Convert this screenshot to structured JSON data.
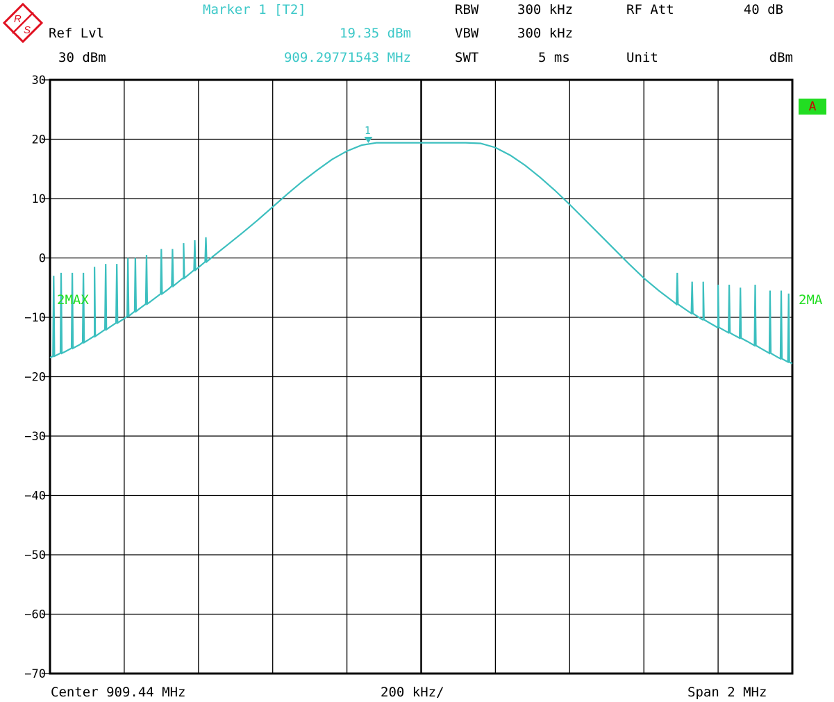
{
  "header": {
    "ref_lvl_label": "Ref Lvl",
    "ref_lvl_value": "30 dBm",
    "marker_title": "Marker 1 [T2]",
    "marker_level": "19.35 dBm",
    "marker_freq": "909.29771543 MHz",
    "rbw_label": "RBW",
    "rbw_value": "300 kHz",
    "vbw_label": "VBW",
    "vbw_value": "300 kHz",
    "swt_label": "SWT",
    "swt_value": "5 ms",
    "rfatt_label": "RF Att",
    "rfatt_value": "40 dB",
    "unit_label": "Unit",
    "unit_value": "dBm"
  },
  "footer": {
    "center": "Center 909.44 MHz",
    "per_div": "200 kHz/",
    "span": "Span 2 MHz"
  },
  "indicators": {
    "trace_badge": "A",
    "trace_left_label": "2MAX",
    "trace_right_label": "2MA",
    "marker_label": "1"
  },
  "colors": {
    "trace": "#3cbfbf",
    "grid": "#000000",
    "badge_bg": "#22dd22",
    "badge_text": "#cc0000",
    "label_green": "#22dd22",
    "logo_red": "#e01020"
  },
  "chart_data": {
    "type": "line",
    "xlabel": "Center 909.44 MHz",
    "x_unit": "MHz",
    "ylabel": "dBm",
    "xlim": [
      908.44,
      910.44
    ],
    "ylim": [
      -70,
      30
    ],
    "yticks": [
      "30",
      "20",
      "10",
      "0",
      "-10",
      "-20",
      "-30",
      "-40",
      "-50",
      "-60",
      "-70"
    ],
    "grid": true,
    "series": [
      {
        "x": [
          908.44,
          908.48,
          908.52,
          908.56,
          908.6,
          908.64,
          908.68,
          908.72,
          908.76,
          908.8,
          908.84,
          908.88,
          908.92,
          908.96,
          909.0,
          909.04,
          909.08,
          909.12,
          909.16,
          909.2,
          909.24,
          909.28,
          909.32,
          909.36,
          909.4,
          909.44,
          909.48,
          909.52,
          909.56,
          909.6,
          909.64,
          909.68,
          909.72,
          909.76,
          909.8,
          909.84,
          909.88,
          909.92,
          909.96,
          910.0,
          910.04,
          910.08,
          910.12,
          910.16,
          910.2,
          910.24,
          910.28,
          910.32,
          910.36,
          910.4,
          910.44
        ],
        "y": [
          -16.8,
          -15.8,
          -14.6,
          -13.2,
          -11.7,
          -10.2,
          -8.6,
          -6.9,
          -5.2,
          -3.4,
          -1.6,
          0.3,
          2.3,
          4.3,
          6.4,
          8.6,
          10.8,
          12.9,
          14.8,
          16.6,
          18.0,
          19.0,
          19.4,
          19.4,
          19.4,
          19.4,
          19.4,
          19.4,
          19.4,
          19.3,
          18.6,
          17.3,
          15.6,
          13.6,
          11.4,
          9.0,
          6.5,
          4.0,
          1.5,
          -1.0,
          -3.4,
          -5.5,
          -7.4,
          -9.0,
          -10.4,
          -11.7,
          -12.9,
          -14.1,
          -15.4,
          -16.7,
          -17.8
        ]
      }
    ],
    "noise_spikes": [
      {
        "x": 908.45,
        "y": -3.0
      },
      {
        "x": 908.47,
        "y": -2.5
      },
      {
        "x": 908.5,
        "y": -2.5
      },
      {
        "x": 908.53,
        "y": -2.5
      },
      {
        "x": 908.56,
        "y": -1.5
      },
      {
        "x": 908.59,
        "y": -1.0
      },
      {
        "x": 908.62,
        "y": -1.0
      },
      {
        "x": 908.65,
        "y": 0.0
      },
      {
        "x": 908.67,
        "y": 0.0
      },
      {
        "x": 908.7,
        "y": 0.5
      },
      {
        "x": 908.74,
        "y": 1.5
      },
      {
        "x": 908.77,
        "y": 1.5
      },
      {
        "x": 908.8,
        "y": 2.5
      },
      {
        "x": 908.83,
        "y": 3.0
      },
      {
        "x": 908.86,
        "y": 3.5
      },
      {
        "x": 910.13,
        "y": -2.5
      },
      {
        "x": 910.17,
        "y": -4.0
      },
      {
        "x": 910.2,
        "y": -4.0
      },
      {
        "x": 910.24,
        "y": -4.5
      },
      {
        "x": 910.27,
        "y": -4.5
      },
      {
        "x": 910.3,
        "y": -5.0
      },
      {
        "x": 910.34,
        "y": -4.5
      },
      {
        "x": 910.38,
        "y": -5.5
      },
      {
        "x": 910.41,
        "y": -5.5
      },
      {
        "x": 910.43,
        "y": -6.0
      }
    ],
    "marker": {
      "x": 909.29771543,
      "y": 19.35,
      "label": "1"
    }
  }
}
